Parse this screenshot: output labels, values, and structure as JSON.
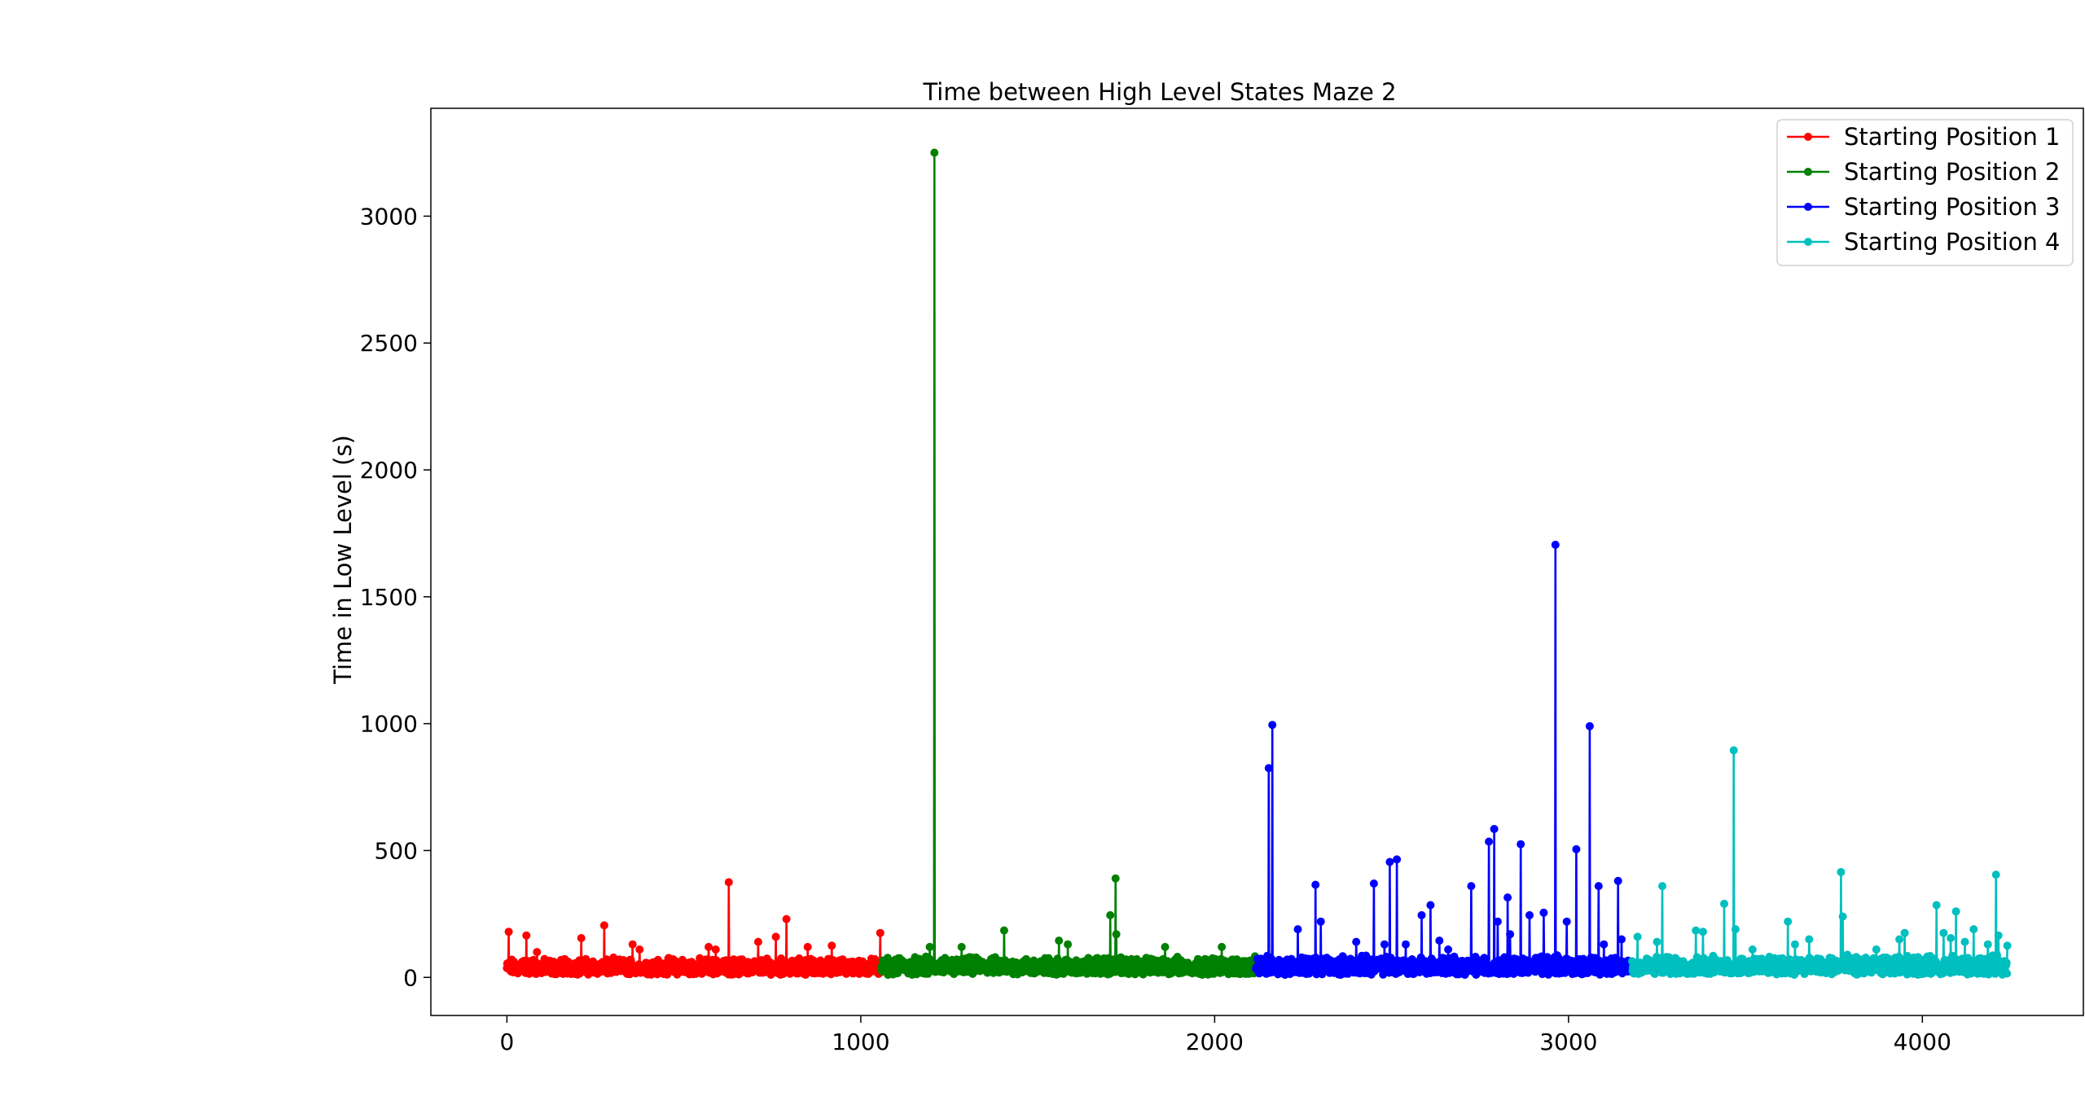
{
  "chart_data": {
    "type": "line",
    "title": "Time between High Level States Maze 2",
    "xlabel": "",
    "ylabel": "Time in Low Level (s)",
    "xlim": [
      -215,
      4455
    ],
    "ylim": [
      -150,
      3425
    ],
    "xticks": [
      0,
      1000,
      2000,
      3000,
      4000
    ],
    "xtick_labels": [
      "0",
      "1000",
      "2000",
      "3000",
      "4000"
    ],
    "yticks": [
      0,
      500,
      1000,
      1500,
      2000,
      2500,
      3000
    ],
    "ytick_labels": [
      "0",
      "500",
      "1000",
      "1500",
      "2000",
      "2500",
      "3000"
    ],
    "grid": false,
    "legend_position": "top-right",
    "series": [
      {
        "name": "Starting Position 1",
        "color": "#ff0000",
        "x_range": [
          0,
          1058
        ],
        "baseline": [
          10,
          80
        ],
        "spikes": [
          {
            "x": 5,
            "y": 180
          },
          {
            "x": 55,
            "y": 165
          },
          {
            "x": 85,
            "y": 100
          },
          {
            "x": 210,
            "y": 155
          },
          {
            "x": 275,
            "y": 205
          },
          {
            "x": 355,
            "y": 130
          },
          {
            "x": 375,
            "y": 110
          },
          {
            "x": 570,
            "y": 120
          },
          {
            "x": 590,
            "y": 110
          },
          {
            "x": 627,
            "y": 375
          },
          {
            "x": 710,
            "y": 140
          },
          {
            "x": 760,
            "y": 160
          },
          {
            "x": 790,
            "y": 230
          },
          {
            "x": 850,
            "y": 120
          },
          {
            "x": 918,
            "y": 125
          },
          {
            "x": 1055,
            "y": 175
          }
        ]
      },
      {
        "name": "Starting Position 2",
        "color": "#008000",
        "x_range": [
          1058,
          2117
        ],
        "baseline": [
          10,
          85
        ],
        "spikes": [
          {
            "x": 1195,
            "y": 120
          },
          {
            "x": 1208,
            "y": 3250
          },
          {
            "x": 1285,
            "y": 120
          },
          {
            "x": 1405,
            "y": 185
          },
          {
            "x": 1560,
            "y": 145
          },
          {
            "x": 1585,
            "y": 130
          },
          {
            "x": 1705,
            "y": 245
          },
          {
            "x": 1720,
            "y": 390
          },
          {
            "x": 1722,
            "y": 170
          },
          {
            "x": 1860,
            "y": 120
          },
          {
            "x": 2020,
            "y": 120
          }
        ]
      },
      {
        "name": "Starting Position 3",
        "color": "#0000ff",
        "x_range": [
          2117,
          3180
        ],
        "baseline": [
          10,
          90
        ],
        "spikes": [
          {
            "x": 2153,
            "y": 825
          },
          {
            "x": 2163,
            "y": 995
          },
          {
            "x": 2235,
            "y": 190
          },
          {
            "x": 2285,
            "y": 365
          },
          {
            "x": 2300,
            "y": 220
          },
          {
            "x": 2400,
            "y": 140
          },
          {
            "x": 2450,
            "y": 370
          },
          {
            "x": 2480,
            "y": 130
          },
          {
            "x": 2495,
            "y": 455
          },
          {
            "x": 2515,
            "y": 465
          },
          {
            "x": 2540,
            "y": 130
          },
          {
            "x": 2585,
            "y": 245
          },
          {
            "x": 2610,
            "y": 285
          },
          {
            "x": 2635,
            "y": 145
          },
          {
            "x": 2660,
            "y": 110
          },
          {
            "x": 2725,
            "y": 360
          },
          {
            "x": 2775,
            "y": 535
          },
          {
            "x": 2790,
            "y": 585
          },
          {
            "x": 2800,
            "y": 220
          },
          {
            "x": 2828,
            "y": 315
          },
          {
            "x": 2835,
            "y": 170
          },
          {
            "x": 2865,
            "y": 525
          },
          {
            "x": 2890,
            "y": 245
          },
          {
            "x": 2930,
            "y": 255
          },
          {
            "x": 2963,
            "y": 1705
          },
          {
            "x": 2995,
            "y": 220
          },
          {
            "x": 3022,
            "y": 505
          },
          {
            "x": 3060,
            "y": 990
          },
          {
            "x": 3085,
            "y": 360
          },
          {
            "x": 3100,
            "y": 130
          },
          {
            "x": 3140,
            "y": 380
          },
          {
            "x": 3150,
            "y": 150
          }
        ]
      },
      {
        "name": "Starting Position 4",
        "color": "#00bfbf",
        "x_range": [
          3180,
          4240
        ],
        "baseline": [
          10,
          90
        ],
        "spikes": [
          {
            "x": 3195,
            "y": 160
          },
          {
            "x": 3250,
            "y": 140
          },
          {
            "x": 3265,
            "y": 360
          },
          {
            "x": 3360,
            "y": 185
          },
          {
            "x": 3380,
            "y": 180
          },
          {
            "x": 3440,
            "y": 290
          },
          {
            "x": 3467,
            "y": 895
          },
          {
            "x": 3472,
            "y": 190
          },
          {
            "x": 3520,
            "y": 110
          },
          {
            "x": 3620,
            "y": 220
          },
          {
            "x": 3640,
            "y": 130
          },
          {
            "x": 3680,
            "y": 150
          },
          {
            "x": 3770,
            "y": 415
          },
          {
            "x": 3775,
            "y": 240
          },
          {
            "x": 3870,
            "y": 110
          },
          {
            "x": 3935,
            "y": 150
          },
          {
            "x": 3950,
            "y": 175
          },
          {
            "x": 4040,
            "y": 285
          },
          {
            "x": 4060,
            "y": 175
          },
          {
            "x": 4080,
            "y": 155
          },
          {
            "x": 4095,
            "y": 260
          },
          {
            "x": 4120,
            "y": 140
          },
          {
            "x": 4145,
            "y": 190
          },
          {
            "x": 4185,
            "y": 130
          },
          {
            "x": 4208,
            "y": 405
          },
          {
            "x": 4215,
            "y": 165
          },
          {
            "x": 4240,
            "y": 125
          }
        ]
      }
    ]
  }
}
